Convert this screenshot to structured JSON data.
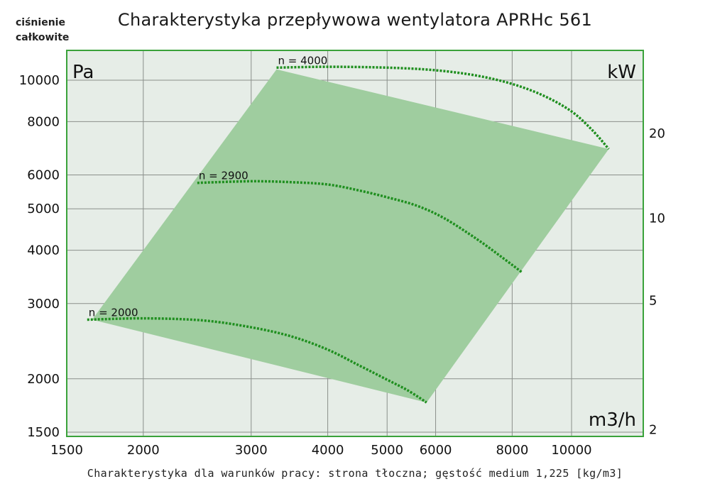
{
  "chart_data": {
    "type": "line",
    "title": "Charakterystyka przepływowa wentylatora APRHc 561",
    "ylabel": "ciśnienie całkowite",
    "y_unit": "Pa",
    "y2_unit": "kW",
    "x_unit": "m3/h",
    "x_scale": "log",
    "y_scale": "log",
    "xlim": [
      1500,
      12000
    ],
    "ylim": [
      1450,
      11000
    ],
    "x_ticks": [
      1500,
      2000,
      3000,
      4000,
      5000,
      6000,
      8000,
      10000
    ],
    "y_ticks": [
      1500,
      2000,
      3000,
      4000,
      5000,
      6000,
      8000,
      10000
    ],
    "y2_ticks": [
      {
        "label": "20",
        "at_pressure": 7500
      },
      {
        "label": "10",
        "at_pressure": 4750
      },
      {
        "label": "5",
        "at_pressure": 3050
      },
      {
        "label": "2",
        "at_pressure": 1520
      }
    ],
    "grid": true,
    "working_area": {
      "color": "#9fcd9f",
      "polygon": [
        [
          1650,
          2750
        ],
        [
          3300,
          10600
        ],
        [
          11500,
          6900
        ],
        [
          5800,
          1760
        ]
      ]
    },
    "series": [
      {
        "name": "n = 2000",
        "color": "#1f8f1f",
        "points": [
          [
            1620,
            2750
          ],
          [
            2000,
            2770
          ],
          [
            2500,
            2740
          ],
          [
            3000,
            2640
          ],
          [
            3500,
            2510
          ],
          [
            4000,
            2340
          ],
          [
            4500,
            2150
          ],
          [
            5000,
            1990
          ],
          [
            5400,
            1880
          ],
          [
            5800,
            1760
          ]
        ]
      },
      {
        "name": "n = 2900",
        "color": "#1f8f1f",
        "points": [
          [
            2450,
            5750
          ],
          [
            3000,
            5800
          ],
          [
            3500,
            5770
          ],
          [
            4000,
            5700
          ],
          [
            4500,
            5520
          ],
          [
            5000,
            5320
          ],
          [
            5600,
            5080
          ],
          [
            6200,
            4750
          ],
          [
            7000,
            4250
          ],
          [
            7700,
            3850
          ],
          [
            8300,
            3550
          ]
        ]
      },
      {
        "name": "n = 4000",
        "color": "#1f8f1f",
        "points": [
          [
            3300,
            10700
          ],
          [
            4000,
            10750
          ],
          [
            5000,
            10700
          ],
          [
            6000,
            10550
          ],
          [
            7000,
            10250
          ],
          [
            8000,
            9800
          ],
          [
            9000,
            9200
          ],
          [
            10000,
            8450
          ],
          [
            10800,
            7650
          ],
          [
            11500,
            6900
          ]
        ]
      }
    ]
  },
  "footnote": "Charakterystyka dla warunków pracy: strona tłoczna; gęstość medium 1,225 [kg/m3]",
  "pressure_label": {
    "line1": "ciśnienie",
    "line2": "całkowite"
  },
  "colors": {
    "plot_bg": "#e6ede7",
    "plot_border": "#3aa23a",
    "grid": "#8a8f8a",
    "area": "#9fcd9f",
    "curve": "#1f8f1f"
  }
}
